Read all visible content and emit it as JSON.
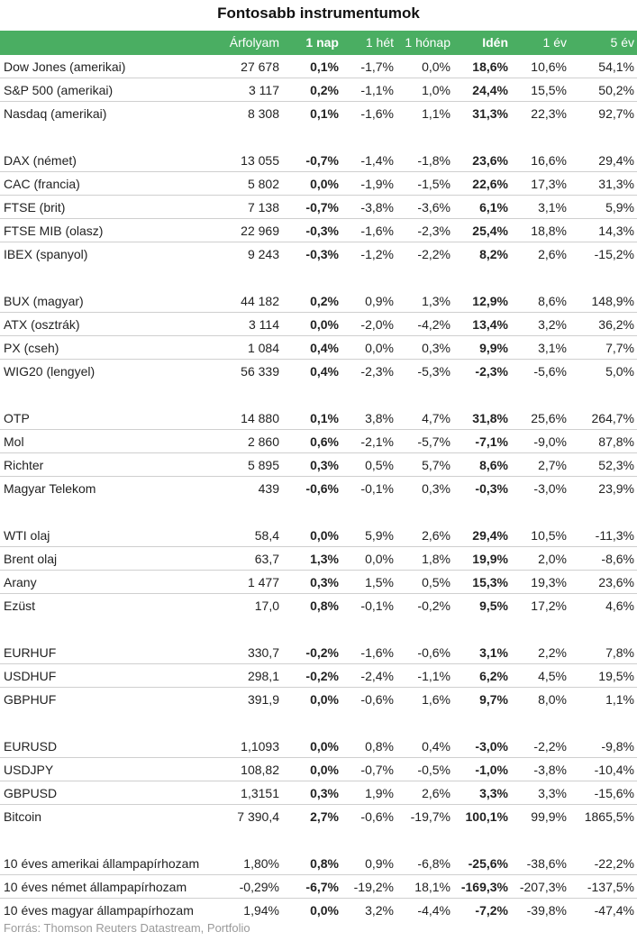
{
  "title": "Fontosabb instrumentumok",
  "header": [
    "",
    "Árfolyam",
    "1 nap",
    "1 hét",
    "1 hónap",
    "Idén",
    "1 év",
    "5 év"
  ],
  "colors": {
    "header_bg": "#4aae62",
    "header_text": "#ffffff",
    "source_text": "#9a9a9a"
  },
  "source": "Forrás: Thomson Reuters Datastream, Portfolio",
  "chart_data": {
    "type": "table",
    "title": "Fontosabb instrumentumok",
    "columns": [
      "",
      "Árfolyam",
      "1 nap",
      "1 hét",
      "1 hónap",
      "Idén",
      "1 év",
      "5 év"
    ],
    "groups": [
      [
        [
          "Dow Jones (amerikai)",
          "27 678",
          "0,1%",
          "-1,7%",
          "0,0%",
          "18,6%",
          "10,6%",
          "54,1%"
        ],
        [
          "S&P 500 (amerikai)",
          "3 117",
          "0,2%",
          "-1,1%",
          "1,0%",
          "24,4%",
          "15,5%",
          "50,2%"
        ],
        [
          "Nasdaq (amerikai)",
          "8 308",
          "0,1%",
          "-1,6%",
          "1,1%",
          "31,3%",
          "22,3%",
          "92,7%"
        ]
      ],
      [
        [
          "DAX (német)",
          "13 055",
          "-0,7%",
          "-1,4%",
          "-1,8%",
          "23,6%",
          "16,6%",
          "29,4%"
        ],
        [
          "CAC (francia)",
          "5 802",
          "0,0%",
          "-1,9%",
          "-1,5%",
          "22,6%",
          "17,3%",
          "31,3%"
        ],
        [
          "FTSE (brit)",
          "7 138",
          "-0,7%",
          "-3,8%",
          "-3,6%",
          "6,1%",
          "3,1%",
          "5,9%"
        ],
        [
          "FTSE MIB (olasz)",
          "22 969",
          "-0,3%",
          "-1,6%",
          "-2,3%",
          "25,4%",
          "18,8%",
          "14,3%"
        ],
        [
          "IBEX (spanyol)",
          "9 243",
          "-0,3%",
          "-1,2%",
          "-2,2%",
          "8,2%",
          "2,6%",
          "-15,2%"
        ]
      ],
      [
        [
          "BUX (magyar)",
          "44 182",
          "0,2%",
          "0,9%",
          "1,3%",
          "12,9%",
          "8,6%",
          "148,9%"
        ],
        [
          "ATX (osztrák)",
          "3 114",
          "0,0%",
          "-2,0%",
          "-4,2%",
          "13,4%",
          "3,2%",
          "36,2%"
        ],
        [
          "PX (cseh)",
          "1 084",
          "0,4%",
          "0,0%",
          "0,3%",
          "9,9%",
          "3,1%",
          "7,7%"
        ],
        [
          "WIG20 (lengyel)",
          "56 339",
          "0,4%",
          "-2,3%",
          "-5,3%",
          "-2,3%",
          "-5,6%",
          "5,0%"
        ]
      ],
      [
        [
          "OTP",
          "14 880",
          "0,1%",
          "3,8%",
          "4,7%",
          "31,8%",
          "25,6%",
          "264,7%"
        ],
        [
          "Mol",
          "2 860",
          "0,6%",
          "-2,1%",
          "-5,7%",
          "-7,1%",
          "-9,0%",
          "87,8%"
        ],
        [
          "Richter",
          "5 895",
          "0,3%",
          "0,5%",
          "5,7%",
          "8,6%",
          "2,7%",
          "52,3%"
        ],
        [
          "Magyar Telekom",
          "439",
          "-0,6%",
          "-0,1%",
          "0,3%",
          "-0,3%",
          "-3,0%",
          "23,9%"
        ]
      ],
      [
        [
          "WTI olaj",
          "58,4",
          "0,0%",
          "5,9%",
          "2,6%",
          "29,4%",
          "10,5%",
          "-11,3%"
        ],
        [
          "Brent olaj",
          "63,7",
          "1,3%",
          "0,0%",
          "1,8%",
          "19,9%",
          "2,0%",
          "-8,6%"
        ],
        [
          "Arany",
          "1 477",
          "0,3%",
          "1,5%",
          "0,5%",
          "15,3%",
          "19,3%",
          "23,6%"
        ],
        [
          "Ezüst",
          "17,0",
          "0,8%",
          "-0,1%",
          "-0,2%",
          "9,5%",
          "17,2%",
          "4,6%"
        ]
      ],
      [
        [
          "EURHUF",
          "330,7",
          "-0,2%",
          "-1,6%",
          "-0,6%",
          "3,1%",
          "2,2%",
          "7,8%"
        ],
        [
          "USDHUF",
          "298,1",
          "-0,2%",
          "-2,4%",
          "-1,1%",
          "6,2%",
          "4,5%",
          "19,5%"
        ],
        [
          "GBPHUF",
          "391,9",
          "0,0%",
          "-0,6%",
          "1,6%",
          "9,7%",
          "8,0%",
          "1,1%"
        ]
      ],
      [
        [
          "EURUSD",
          "1,1093",
          "0,0%",
          "0,8%",
          "0,4%",
          "-3,0%",
          "-2,2%",
          "-9,8%"
        ],
        [
          "USDJPY",
          "108,82",
          "0,0%",
          "-0,7%",
          "-0,5%",
          "-1,0%",
          "-3,8%",
          "-10,4%"
        ],
        [
          "GBPUSD",
          "1,3151",
          "0,3%",
          "1,9%",
          "2,6%",
          "3,3%",
          "3,3%",
          "-15,6%"
        ],
        [
          "Bitcoin",
          "7 390,4",
          "2,7%",
          "-0,6%",
          "-19,7%",
          "100,1%",
          "99,9%",
          "1865,5%"
        ]
      ],
      [
        [
          "10 éves amerikai állampapírhozam",
          "1,80%",
          "0,8%",
          "0,9%",
          "-6,8%",
          "-25,6%",
          "-38,6%",
          "-22,2%"
        ],
        [
          "10 éves német állampapírhozam",
          "-0,29%",
          "-6,7%",
          "-19,2%",
          "18,1%",
          "-169,3%",
          "-207,3%",
          "-137,5%"
        ],
        [
          "10 éves magyar állampapírhozam",
          "1,94%",
          "0,0%",
          "3,2%",
          "-4,4%",
          "-7,2%",
          "-39,8%",
          "-47,4%"
        ]
      ]
    ],
    "bold_columns": [
      2,
      5
    ],
    "grid": true
  }
}
